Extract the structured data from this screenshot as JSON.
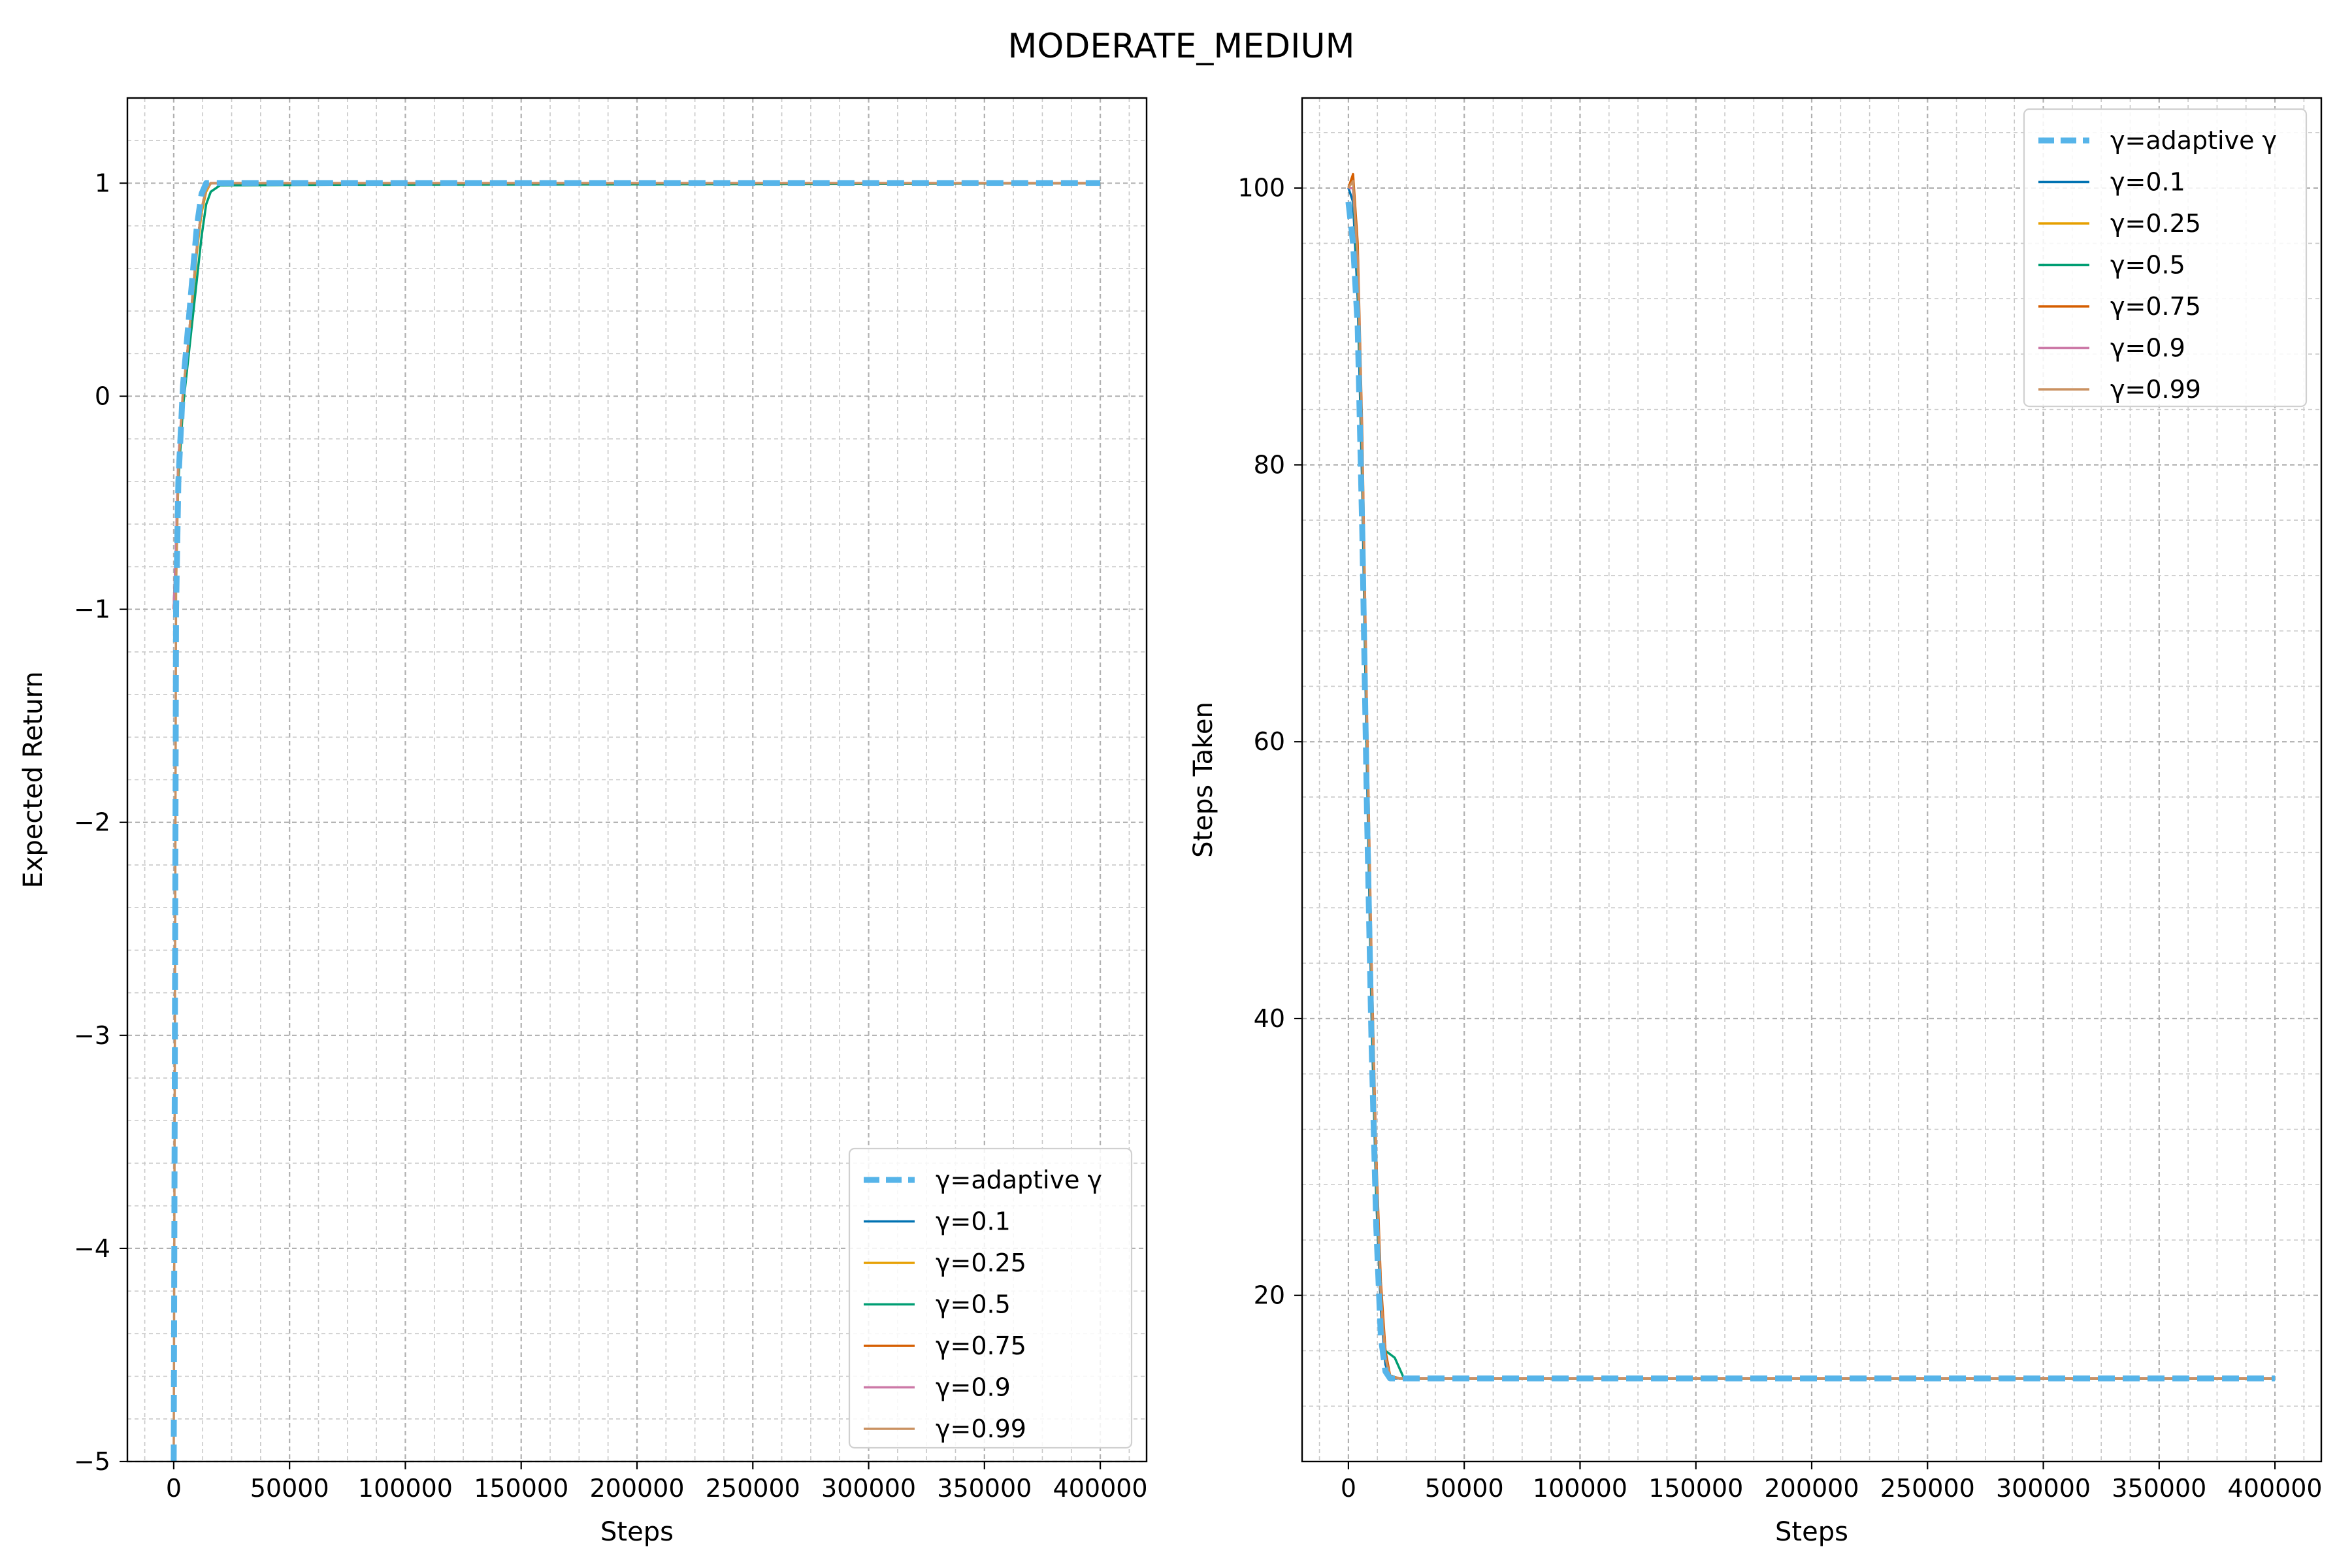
{
  "figure": {
    "title": "MODERATE_MEDIUM"
  },
  "chart_data": [
    {
      "type": "line",
      "title": "",
      "xlabel": "Steps",
      "ylabel": "Expected Return",
      "xlim": [
        -20000,
        420000
      ],
      "ylim": [
        -5,
        1.4
      ],
      "xticks": [
        0,
        50000,
        100000,
        150000,
        200000,
        250000,
        300000,
        350000,
        400000
      ],
      "yticks": [
        -5,
        -4,
        -3,
        -2,
        -1,
        0,
        1
      ],
      "ytick_labels": [
        "−5",
        "−4",
        "−3",
        "−2",
        "−1",
        "0",
        "1"
      ],
      "grid": true,
      "legend_position": "bottom-right",
      "series": [
        {
          "name": "γ=adaptive γ",
          "color": "#56b4e9",
          "style": "dashed",
          "x": [
            0,
            1000,
            2000,
            4000,
            6000,
            8000,
            10000,
            12000,
            14000,
            16000,
            20000,
            400000
          ],
          "y": [
            -5.0,
            -1.0,
            -0.4,
            0.05,
            0.3,
            0.55,
            0.8,
            0.95,
            1.0,
            1.0,
            1.0,
            1.0
          ]
        },
        {
          "name": "γ=0.1",
          "color": "#0072b2",
          "style": "solid",
          "x": [
            0,
            1000,
            2000,
            4000,
            6000,
            8000,
            10000,
            12000,
            14000,
            16000,
            20000,
            400000
          ],
          "y": [
            -1.0,
            -0.7,
            -0.3,
            0.0,
            0.2,
            0.45,
            0.7,
            0.88,
            0.97,
            1.0,
            1.0,
            1.0
          ]
        },
        {
          "name": "γ=0.25",
          "color": "#e69f00",
          "style": "solid",
          "x": [
            0,
            1000,
            2000,
            4000,
            6000,
            8000,
            10000,
            12000,
            14000,
            16000,
            20000,
            400000
          ],
          "y": [
            -1.0,
            -0.75,
            -0.35,
            0.0,
            0.2,
            0.42,
            0.68,
            0.86,
            0.96,
            1.0,
            1.0,
            1.0
          ]
        },
        {
          "name": "γ=0.5",
          "color": "#009e73",
          "style": "solid",
          "x": [
            0,
            1000,
            2000,
            4000,
            6000,
            8000,
            10000,
            12000,
            14000,
            16000,
            20000,
            400000
          ],
          "y": [
            -1.0,
            -0.75,
            -0.4,
            -0.05,
            0.15,
            0.35,
            0.55,
            0.75,
            0.9,
            0.96,
            0.99,
            1.0
          ]
        },
        {
          "name": "γ=0.75",
          "color": "#d55e00",
          "style": "solid",
          "x": [
            0,
            1000,
            2000,
            4000,
            6000,
            8000,
            10000,
            12000,
            14000,
            16000,
            20000,
            400000
          ],
          "y": [
            -1.0,
            -0.7,
            -0.3,
            0.02,
            0.22,
            0.46,
            0.7,
            0.88,
            0.97,
            1.0,
            1.0,
            1.0
          ]
        },
        {
          "name": "γ=0.9",
          "color": "#cc79a7",
          "style": "solid",
          "x": [
            0,
            1000,
            2000,
            4000,
            6000,
            8000,
            10000,
            12000,
            14000,
            16000,
            20000,
            400000
          ],
          "y": [
            -1.0,
            -0.7,
            -0.3,
            0.02,
            0.22,
            0.46,
            0.7,
            0.88,
            0.97,
            1.0,
            1.0,
            1.0
          ]
        },
        {
          "name": "γ=0.99",
          "color": "#ca9161",
          "style": "solid",
          "x": [
            0,
            1000,
            2000,
            4000,
            6000,
            8000,
            10000,
            12000,
            14000,
            16000,
            20000,
            400000
          ],
          "y": [
            -5.0,
            -0.9,
            -0.35,
            0.02,
            0.22,
            0.46,
            0.7,
            0.88,
            0.97,
            1.0,
            1.0,
            1.0
          ]
        }
      ]
    },
    {
      "type": "line",
      "title": "",
      "xlabel": "Steps",
      "ylabel": "Steps Taken",
      "xlim": [
        -20000,
        420000
      ],
      "ylim": [
        8,
        106.5
      ],
      "xticks": [
        0,
        50000,
        100000,
        150000,
        200000,
        250000,
        300000,
        350000,
        400000
      ],
      "yticks": [
        20,
        40,
        60,
        80,
        100
      ],
      "ytick_labels": [
        "20",
        "40",
        "60",
        "80",
        "100"
      ],
      "grid": true,
      "legend_position": "top-right",
      "series": [
        {
          "name": "γ=adaptive γ",
          "color": "#56b4e9",
          "style": "dashed",
          "x": [
            0,
            2000,
            4000,
            6000,
            8000,
            10000,
            12000,
            14000,
            16000,
            18000,
            22000,
            400000
          ],
          "y": [
            99,
            96,
            90,
            75,
            55,
            38,
            25,
            17,
            14.5,
            14,
            14,
            14
          ]
        },
        {
          "name": "γ=0.1",
          "color": "#0072b2",
          "style": "solid",
          "x": [
            0,
            2000,
            4000,
            6000,
            8000,
            10000,
            12000,
            14000,
            16000,
            18000,
            22000,
            400000
          ],
          "y": [
            100,
            99,
            92,
            78,
            58,
            40,
            27,
            19,
            15,
            14,
            14,
            14
          ]
        },
        {
          "name": "γ=0.25",
          "color": "#e69f00",
          "style": "solid",
          "x": [
            0,
            2000,
            4000,
            6000,
            8000,
            10000,
            12000,
            14000,
            16000,
            18000,
            22000,
            400000
          ],
          "y": [
            100,
            100,
            94,
            80,
            60,
            42,
            28,
            20,
            15.5,
            14.2,
            14,
            14
          ]
        },
        {
          "name": "γ=0.5",
          "color": "#009e73",
          "style": "solid",
          "x": [
            0,
            2000,
            4000,
            6000,
            8000,
            10000,
            12000,
            14000,
            16000,
            20000,
            24000,
            400000
          ],
          "y": [
            100,
            100,
            94,
            80,
            60,
            42,
            28,
            20,
            16,
            15.5,
            14,
            14
          ]
        },
        {
          "name": "γ=0.75",
          "color": "#d55e00",
          "style": "solid",
          "x": [
            0,
            2000,
            4000,
            6000,
            8000,
            10000,
            12000,
            14000,
            16000,
            18000,
            22000,
            400000
          ],
          "y": [
            100,
            101,
            96,
            82,
            62,
            44,
            30,
            21,
            16,
            14.2,
            14,
            14
          ]
        },
        {
          "name": "γ=0.9",
          "color": "#cc79a7",
          "style": "solid",
          "x": [
            0,
            2000,
            4000,
            6000,
            8000,
            10000,
            12000,
            14000,
            16000,
            18000,
            22000,
            400000
          ],
          "y": [
            100,
            100,
            95,
            81,
            61,
            43,
            29,
            20,
            15.5,
            14.1,
            14,
            14
          ]
        },
        {
          "name": "γ=0.99",
          "color": "#ca9161",
          "style": "solid",
          "x": [
            0,
            2000,
            4000,
            6000,
            8000,
            10000,
            12000,
            14000,
            16000,
            18000,
            22000,
            400000
          ],
          "y": [
            100,
            100.5,
            95,
            81,
            61,
            43,
            29,
            20,
            15.5,
            14.1,
            14,
            14
          ]
        }
      ]
    }
  ]
}
